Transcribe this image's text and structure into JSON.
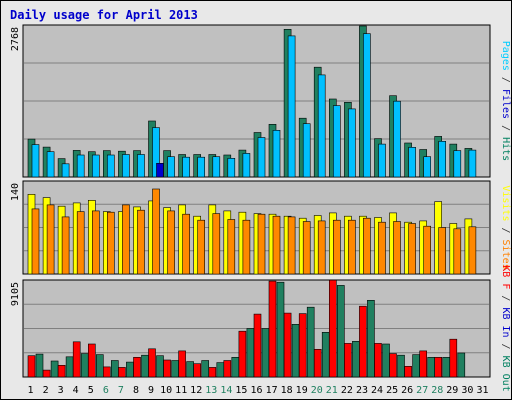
{
  "chart_data": {
    "type": "bar",
    "title": "Daily usage for April 2013",
    "categories": [
      "1",
      "2",
      "3",
      "4",
      "5",
      "6",
      "7",
      "8",
      "9",
      "10",
      "11",
      "12",
      "13",
      "14",
      "15",
      "16",
      "17",
      "18",
      "19",
      "20",
      "21",
      "22",
      "23",
      "24",
      "25",
      "26",
      "27",
      "28",
      "29",
      "30",
      "31"
    ],
    "weekend_days": [
      6,
      7,
      13,
      14,
      20,
      21,
      27,
      28
    ],
    "grid": true,
    "panels": [
      {
        "ymax_label": "2768",
        "ymax": 2768,
        "label_parts": [
          {
            "text": "Pages",
            "color": "#00ccff"
          },
          {
            "text": " / ",
            "color": "#333333"
          },
          {
            "text": "Files",
            "color": "#0000cc"
          },
          {
            "text": " / ",
            "color": "#333333"
          },
          {
            "text": "Hits",
            "color": "#008060"
          }
        ],
        "series": [
          {
            "name": "Hits",
            "color": "#208060",
            "values": [
              690,
              545,
              335,
              485,
              460,
              480,
              470,
              480,
              1020,
              480,
              410,
              410,
              410,
              400,
              490,
              810,
              960,
              2690,
              1070,
              2000,
              1420,
              1360,
              2750,
              700,
              1480,
              620,
              500,
              740,
              600,
              520,
              0
            ]
          },
          {
            "name": "Files",
            "color": "#00c0ff",
            "values": [
              590,
              460,
              240,
              400,
              400,
              400,
              410,
              410,
              900,
              370,
              360,
              360,
              370,
              340,
              430,
              720,
              850,
              2570,
              970,
              1860,
              1300,
              1240,
              2610,
              600,
              1380,
              540,
              370,
              650,
              480,
              490,
              0
            ]
          },
          {
            "name": "Pages",
            "color": "#0000cc",
            "values": [
              0,
              0,
              0,
              0,
              0,
              0,
              0,
              0,
              250,
              0,
              0,
              0,
              0,
              0,
              0,
              0,
              0,
              0,
              0,
              0,
              0,
              0,
              0,
              0,
              0,
              0,
              0,
              0,
              0,
              0,
              0
            ]
          }
        ]
      },
      {
        "ymax_label": "140",
        "ymax": 140,
        "label_parts": [
          {
            "text": "Visits",
            "color": "#ffff00"
          },
          {
            "text": " / ",
            "color": "#333333"
          },
          {
            "text": "Sites",
            "color": "#ff8000"
          }
        ],
        "series": [
          {
            "name": "Visits",
            "color": "#ffff00",
            "values": [
              120,
              115,
              102,
              107,
              111,
              94,
              94,
              101,
              110,
              100,
              104,
              87,
              104,
              95,
              93,
              91,
              90,
              87,
              84,
              88,
              92,
              87,
              87,
              85,
              92,
              78,
              80,
              109,
              76,
              83,
              0
            ]
          },
          {
            "name": "Sites",
            "color": "#ff8800",
            "values": [
              98,
              104,
              86,
              94,
              95,
              93,
              104,
              96,
              128,
              95,
              90,
              81,
              91,
              82,
              81,
              90,
              87,
              86,
              79,
              80,
              81,
              81,
              84,
              78,
              79,
              76,
              72,
              70,
              68,
              71,
              0
            ]
          }
        ]
      },
      {
        "ymax_label": "9105",
        "ymax": 9105,
        "label_parts": [
          {
            "text": "KB F",
            "color": "#ff0000"
          },
          {
            "text": " / ",
            "color": "#333333"
          },
          {
            "text": "KB In",
            "color": "#0000cc"
          },
          {
            "text": " / ",
            "color": "#333333"
          },
          {
            "text": "KB Out",
            "color": "#008060"
          }
        ],
        "series": [
          {
            "name": "KB F",
            "color": "#ff0000",
            "values": [
              2000,
              650,
              1100,
              3300,
              3100,
              950,
              900,
              1850,
              2650,
              1600,
              2450,
              1250,
              900,
              1550,
              4300,
              5900,
              9000,
              6000,
              5950,
              2600,
              9100,
              3150,
              6650,
              3150,
              2200,
              1000,
              2450,
              1850,
              3550,
              0,
              0
            ]
          },
          {
            "name": "KB In",
            "color": "#0000cc",
            "values": [
              0,
              0,
              0,
              0,
              0,
              0,
              0,
              0,
              0,
              0,
              0,
              0,
              0,
              0,
              0,
              0,
              0,
              0,
              0,
              0,
              0,
              0,
              0,
              0,
              0,
              0,
              0,
              0,
              0,
              0,
              0
            ]
          },
          {
            "name": "KB Out",
            "color": "#208060",
            "values": [
              2150,
              1500,
              1900,
              2200,
              2100,
              1550,
              1400,
              2050,
              2000,
              1550,
              1450,
              1550,
              1350,
              1850,
              4550,
              4550,
              8900,
              4950,
              6550,
              4200,
              8600,
              3350,
              7200,
              3100,
              2050,
              2100,
              1850,
              1850,
              2250,
              0,
              0
            ]
          }
        ]
      }
    ]
  }
}
